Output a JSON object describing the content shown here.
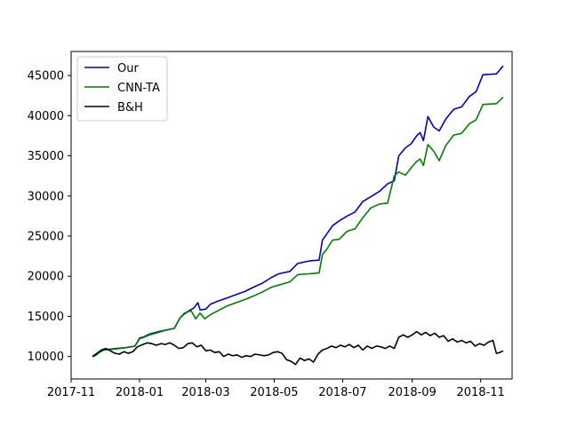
{
  "chart_data": {
    "type": "line",
    "title": "",
    "xlabel": "",
    "ylabel": "",
    "xlim": [
      "2017-11-01",
      "2018-11-29"
    ],
    "ylim": [
      7200,
      48000
    ],
    "x_ticks": [
      "2017-11",
      "2018-01",
      "2018-03",
      "2018-05",
      "2018-07",
      "2018-09",
      "2018-11"
    ],
    "y_ticks": [
      10000,
      15000,
      20000,
      25000,
      30000,
      35000,
      40000,
      45000
    ],
    "grid": false,
    "legend_position": "top-left",
    "series": [
      {
        "name": "Our",
        "color": "#0000cc",
        "points": [
          [
            "2017-11-20",
            10000
          ],
          [
            "2017-11-23",
            10150
          ],
          [
            "2017-11-26",
            10550
          ],
          [
            "2017-11-30",
            10850
          ],
          [
            "2017-12-05",
            10900
          ],
          [
            "2017-12-12",
            11000
          ],
          [
            "2017-12-20",
            11100
          ],
          [
            "2017-12-28",
            11300
          ],
          [
            "2018-01-01",
            12300
          ],
          [
            "2018-01-05",
            12450
          ],
          [
            "2018-01-10",
            12800
          ],
          [
            "2018-01-18",
            13100
          ],
          [
            "2018-01-25",
            13300
          ],
          [
            "2018-02-01",
            13500
          ],
          [
            "2018-02-06",
            14800
          ],
          [
            "2018-02-10",
            15300
          ],
          [
            "2018-02-14",
            15700
          ],
          [
            "2018-02-18",
            16000
          ],
          [
            "2018-02-22",
            16700
          ],
          [
            "2018-02-24",
            15800
          ],
          [
            "2018-03-01",
            15900
          ],
          [
            "2018-03-05",
            16500
          ],
          [
            "2018-03-12",
            16900
          ],
          [
            "2018-03-20",
            17300
          ],
          [
            "2018-03-28",
            17700
          ],
          [
            "2018-04-05",
            18100
          ],
          [
            "2018-04-12",
            18600
          ],
          [
            "2018-04-20",
            19100
          ],
          [
            "2018-04-28",
            19800
          ],
          [
            "2018-05-05",
            20300
          ],
          [
            "2018-05-15",
            20600
          ],
          [
            "2018-05-22",
            21600
          ],
          [
            "2018-06-01",
            21900
          ],
          [
            "2018-06-10",
            22000
          ],
          [
            "2018-06-13",
            24500
          ],
          [
            "2018-06-17",
            25300
          ],
          [
            "2018-06-22",
            26300
          ],
          [
            "2018-06-28",
            26900
          ],
          [
            "2018-07-05",
            27500
          ],
          [
            "2018-07-12",
            28000
          ],
          [
            "2018-07-19",
            29300
          ],
          [
            "2018-07-26",
            29900
          ],
          [
            "2018-08-03",
            30600
          ],
          [
            "2018-08-10",
            31500
          ],
          [
            "2018-08-16",
            31900
          ],
          [
            "2018-08-20",
            35000
          ],
          [
            "2018-08-26",
            36000
          ],
          [
            "2018-08-31",
            36500
          ],
          [
            "2018-09-05",
            37500
          ],
          [
            "2018-09-08",
            37900
          ],
          [
            "2018-09-11",
            36900
          ],
          [
            "2018-09-15",
            39900
          ],
          [
            "2018-09-20",
            38600
          ],
          [
            "2018-09-25",
            38100
          ],
          [
            "2018-10-01",
            39600
          ],
          [
            "2018-10-08",
            40800
          ],
          [
            "2018-10-15",
            41100
          ],
          [
            "2018-10-22",
            42400
          ],
          [
            "2018-10-28",
            43000
          ],
          [
            "2018-11-03",
            45100
          ],
          [
            "2018-11-15",
            45200
          ],
          [
            "2018-11-21",
            46200
          ]
        ]
      },
      {
        "name": "CNN-TA",
        "color": "#008000",
        "points": [
          [
            "2017-11-20",
            10000
          ],
          [
            "2017-11-23",
            10150
          ],
          [
            "2017-11-26",
            10500
          ],
          [
            "2017-11-30",
            10800
          ],
          [
            "2017-12-05",
            10850
          ],
          [
            "2017-12-12",
            10950
          ],
          [
            "2017-12-20",
            11100
          ],
          [
            "2017-12-28",
            11300
          ],
          [
            "2018-01-01",
            12200
          ],
          [
            "2018-01-05",
            12400
          ],
          [
            "2018-01-10",
            12700
          ],
          [
            "2018-01-18",
            13000
          ],
          [
            "2018-01-25",
            13300
          ],
          [
            "2018-02-01",
            13500
          ],
          [
            "2018-02-06",
            14800
          ],
          [
            "2018-02-10",
            15400
          ],
          [
            "2018-02-16",
            15700
          ],
          [
            "2018-02-20",
            14700
          ],
          [
            "2018-02-24",
            15400
          ],
          [
            "2018-02-28",
            14700
          ],
          [
            "2018-03-05",
            15200
          ],
          [
            "2018-03-12",
            15700
          ],
          [
            "2018-03-20",
            16300
          ],
          [
            "2018-03-28",
            16700
          ],
          [
            "2018-04-05",
            17100
          ],
          [
            "2018-04-12",
            17500
          ],
          [
            "2018-04-20",
            18000
          ],
          [
            "2018-04-28",
            18600
          ],
          [
            "2018-05-05",
            18900
          ],
          [
            "2018-05-15",
            19300
          ],
          [
            "2018-05-22",
            20200
          ],
          [
            "2018-06-01",
            20300
          ],
          [
            "2018-06-10",
            20400
          ],
          [
            "2018-06-13",
            22700
          ],
          [
            "2018-06-17",
            23400
          ],
          [
            "2018-06-22",
            24500
          ],
          [
            "2018-06-28",
            24600
          ],
          [
            "2018-07-05",
            25600
          ],
          [
            "2018-07-12",
            25900
          ],
          [
            "2018-07-19",
            27300
          ],
          [
            "2018-07-26",
            28500
          ],
          [
            "2018-08-03",
            29000
          ],
          [
            "2018-08-10",
            29100
          ],
          [
            "2018-08-16",
            32500
          ],
          [
            "2018-08-20",
            33000
          ],
          [
            "2018-08-26",
            32600
          ],
          [
            "2018-08-31",
            33500
          ],
          [
            "2018-09-05",
            34300
          ],
          [
            "2018-09-08",
            34600
          ],
          [
            "2018-09-11",
            33800
          ],
          [
            "2018-09-15",
            36400
          ],
          [
            "2018-09-20",
            35600
          ],
          [
            "2018-09-25",
            34400
          ],
          [
            "2018-10-01",
            36300
          ],
          [
            "2018-10-08",
            37600
          ],
          [
            "2018-10-15",
            37800
          ],
          [
            "2018-10-22",
            39000
          ],
          [
            "2018-10-28",
            39500
          ],
          [
            "2018-11-03",
            41400
          ],
          [
            "2018-11-15",
            41500
          ],
          [
            "2018-11-21",
            42300
          ]
        ]
      },
      {
        "name": "B&H",
        "color": "#000000",
        "points": [
          [
            "2017-11-20",
            10000
          ],
          [
            "2017-11-24",
            10400
          ],
          [
            "2017-11-28",
            10800
          ],
          [
            "2017-12-02",
            11000
          ],
          [
            "2017-12-06",
            10700
          ],
          [
            "2017-12-10",
            10400
          ],
          [
            "2017-12-14",
            10300
          ],
          [
            "2017-12-18",
            10600
          ],
          [
            "2017-12-22",
            10400
          ],
          [
            "2017-12-26",
            10600
          ],
          [
            "2017-12-30",
            11200
          ],
          [
            "2018-01-04",
            11500
          ],
          [
            "2018-01-08",
            11700
          ],
          [
            "2018-01-12",
            11600
          ],
          [
            "2018-01-16",
            11400
          ],
          [
            "2018-01-20",
            11600
          ],
          [
            "2018-01-24",
            11500
          ],
          [
            "2018-01-28",
            11700
          ],
          [
            "2018-02-01",
            11400
          ],
          [
            "2018-02-05",
            11000
          ],
          [
            "2018-02-09",
            11100
          ],
          [
            "2018-02-13",
            11600
          ],
          [
            "2018-02-17",
            11700
          ],
          [
            "2018-02-21",
            11200
          ],
          [
            "2018-02-25",
            11400
          ],
          [
            "2018-03-01",
            10700
          ],
          [
            "2018-03-05",
            10800
          ],
          [
            "2018-03-09",
            10500
          ],
          [
            "2018-03-13",
            10600
          ],
          [
            "2018-03-17",
            10000
          ],
          [
            "2018-03-21",
            10300
          ],
          [
            "2018-03-25",
            10100
          ],
          [
            "2018-03-29",
            10200
          ],
          [
            "2018-04-02",
            9900
          ],
          [
            "2018-04-06",
            10100
          ],
          [
            "2018-04-10",
            10000
          ],
          [
            "2018-04-14",
            10300
          ],
          [
            "2018-04-18",
            10200
          ],
          [
            "2018-04-22",
            10100
          ],
          [
            "2018-04-26",
            10200
          ],
          [
            "2018-04-30",
            10500
          ],
          [
            "2018-05-04",
            10600
          ],
          [
            "2018-05-08",
            10400
          ],
          [
            "2018-05-12",
            9600
          ],
          [
            "2018-05-16",
            9400
          ],
          [
            "2018-05-20",
            9000
          ],
          [
            "2018-05-24",
            9800
          ],
          [
            "2018-05-28",
            9500
          ],
          [
            "2018-06-01",
            9700
          ],
          [
            "2018-06-05",
            9300
          ],
          [
            "2018-06-09",
            10300
          ],
          [
            "2018-06-13",
            10800
          ],
          [
            "2018-06-17",
            11000
          ],
          [
            "2018-06-21",
            11300
          ],
          [
            "2018-06-25",
            11100
          ],
          [
            "2018-06-29",
            11400
          ],
          [
            "2018-07-03",
            11200
          ],
          [
            "2018-07-07",
            11500
          ],
          [
            "2018-07-11",
            11100
          ],
          [
            "2018-07-15",
            11400
          ],
          [
            "2018-07-19",
            10800
          ],
          [
            "2018-07-23",
            11300
          ],
          [
            "2018-07-27",
            11000
          ],
          [
            "2018-07-31",
            11300
          ],
          [
            "2018-08-04",
            11200
          ],
          [
            "2018-08-08",
            11000
          ],
          [
            "2018-08-12",
            11300
          ],
          [
            "2018-08-16",
            11000
          ],
          [
            "2018-08-20",
            12400
          ],
          [
            "2018-08-24",
            12700
          ],
          [
            "2018-08-28",
            12400
          ],
          [
            "2018-09-01",
            12700
          ],
          [
            "2018-09-05",
            13100
          ],
          [
            "2018-09-09",
            12700
          ],
          [
            "2018-09-13",
            13000
          ],
          [
            "2018-09-17",
            12600
          ],
          [
            "2018-09-21",
            12900
          ],
          [
            "2018-09-25",
            12400
          ],
          [
            "2018-09-29",
            12600
          ],
          [
            "2018-10-03",
            11900
          ],
          [
            "2018-10-07",
            12200
          ],
          [
            "2018-10-11",
            11800
          ],
          [
            "2018-10-15",
            12000
          ],
          [
            "2018-10-19",
            11700
          ],
          [
            "2018-10-23",
            11900
          ],
          [
            "2018-10-27",
            11300
          ],
          [
            "2018-10-31",
            11600
          ],
          [
            "2018-11-04",
            11400
          ],
          [
            "2018-11-08",
            11800
          ],
          [
            "2018-11-12",
            12000
          ],
          [
            "2018-11-15",
            10400
          ],
          [
            "2018-11-18",
            10500
          ],
          [
            "2018-11-21",
            10700
          ]
        ]
      }
    ]
  }
}
